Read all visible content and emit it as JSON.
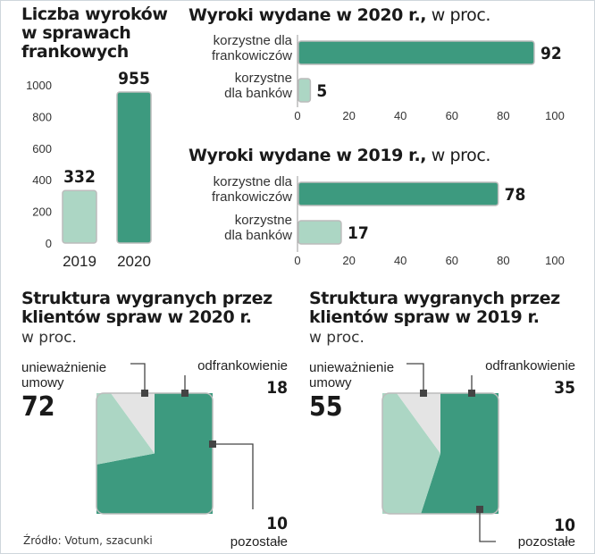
{
  "colors": {
    "dark": "#3d9a7f",
    "light": "#acd6c4",
    "grey": "#e4e4e4",
    "outline": "#bcbcbc"
  },
  "source": "Źródło: Votum, szacunki",
  "chart_data": [
    {
      "type": "bar",
      "title_lines": [
        "Liczba wyroków",
        "w sprawach",
        "frankowych"
      ],
      "categories": [
        "2019",
        "2020"
      ],
      "values": [
        332,
        955
      ],
      "value_labels": [
        "332",
        "955"
      ],
      "ylim": [
        0,
        1000
      ],
      "yticks": [
        "0",
        "200",
        "400",
        "600",
        "800",
        "1000"
      ]
    },
    {
      "type": "bar",
      "orientation": "horizontal",
      "title_bold": "Wyroki wydane w 2020 r.,",
      "title_light": " w proc.",
      "categories": [
        [
          "korzystne dla",
          "frankowiczów"
        ],
        [
          "korzystne",
          "dla banków"
        ]
      ],
      "values": [
        92,
        5
      ],
      "value_labels": [
        "92",
        "5"
      ],
      "xlim": [
        0,
        100
      ],
      "xticks": [
        "0",
        "20",
        "40",
        "60",
        "80",
        "100"
      ]
    },
    {
      "type": "bar",
      "orientation": "horizontal",
      "title_bold": "Wyroki wydane w 2019 r.,",
      "title_light": " w proc.",
      "categories": [
        [
          "korzystne dla",
          "frankowiczów"
        ],
        [
          "korzystne",
          "dla banków"
        ]
      ],
      "values": [
        78,
        17
      ],
      "value_labels": [
        "78",
        "17"
      ],
      "xlim": [
        0,
        100
      ],
      "xticks": [
        "0",
        "20",
        "40",
        "60",
        "80",
        "100"
      ]
    },
    {
      "type": "pie",
      "title_lines": [
        "Struktura wygranych przez",
        "klientów spraw w 2020 r."
      ],
      "subtitle": "w proc.",
      "slices": [
        {
          "label": [
            "unieważnienie",
            "umowy"
          ],
          "value": 72,
          "value_label": "72"
        },
        {
          "label": [
            "odfrankowienie"
          ],
          "value": 18,
          "value_label": "18"
        },
        {
          "label": [
            "pozostałe"
          ],
          "value": 10,
          "value_label": "10"
        }
      ]
    },
    {
      "type": "pie",
      "title_lines": [
        "Struktura wygranych przez",
        "klientów spraw w 2019 r."
      ],
      "subtitle": "w proc.",
      "slices": [
        {
          "label": [
            "unieważnienie",
            "umowy"
          ],
          "value": 55,
          "value_label": "55"
        },
        {
          "label": [
            "odfrankowienie"
          ],
          "value": 35,
          "value_label": "35"
        },
        {
          "label": [
            "pozostałe"
          ],
          "value": 10,
          "value_label": "10"
        }
      ]
    }
  ]
}
